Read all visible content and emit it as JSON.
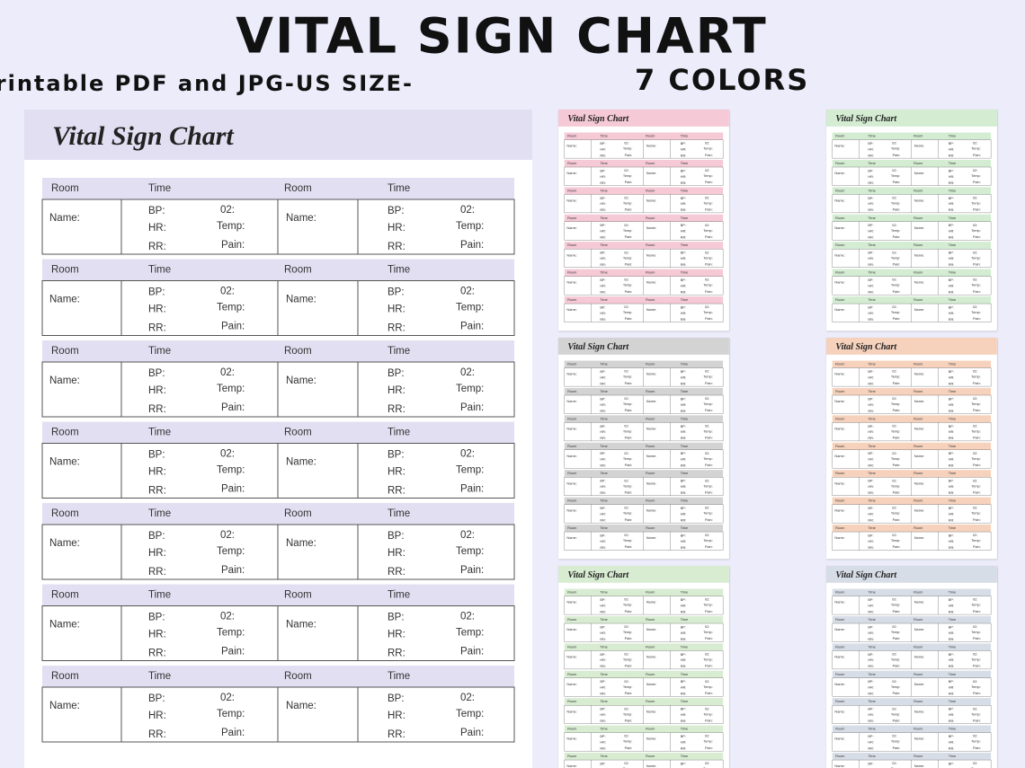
{
  "header": {
    "title": "VITAL SIGN CHART",
    "subtitle": "Printable PDF and JPG-US SIZE-",
    "subtitle_emphasis": "7 COLORS"
  },
  "sheet": {
    "title": "Vital Sign Chart",
    "color": "#e3dff2",
    "labels": {
      "room": "Room",
      "time": "Time",
      "name": "Name:",
      "bp": "BP:",
      "hr": "HR:",
      "rr": "RR:",
      "o2": "02:",
      "temp": "Temp:",
      "pain": "Pain:"
    }
  },
  "thumbnails": [
    {
      "color": "#f5c9d6"
    },
    {
      "color": "#d3ecd2"
    },
    {
      "color": "#d3d3d3"
    },
    {
      "color": "#f6d2bd"
    },
    {
      "color": "#d8ecd2"
    },
    {
      "color": "#d7dde6"
    }
  ]
}
